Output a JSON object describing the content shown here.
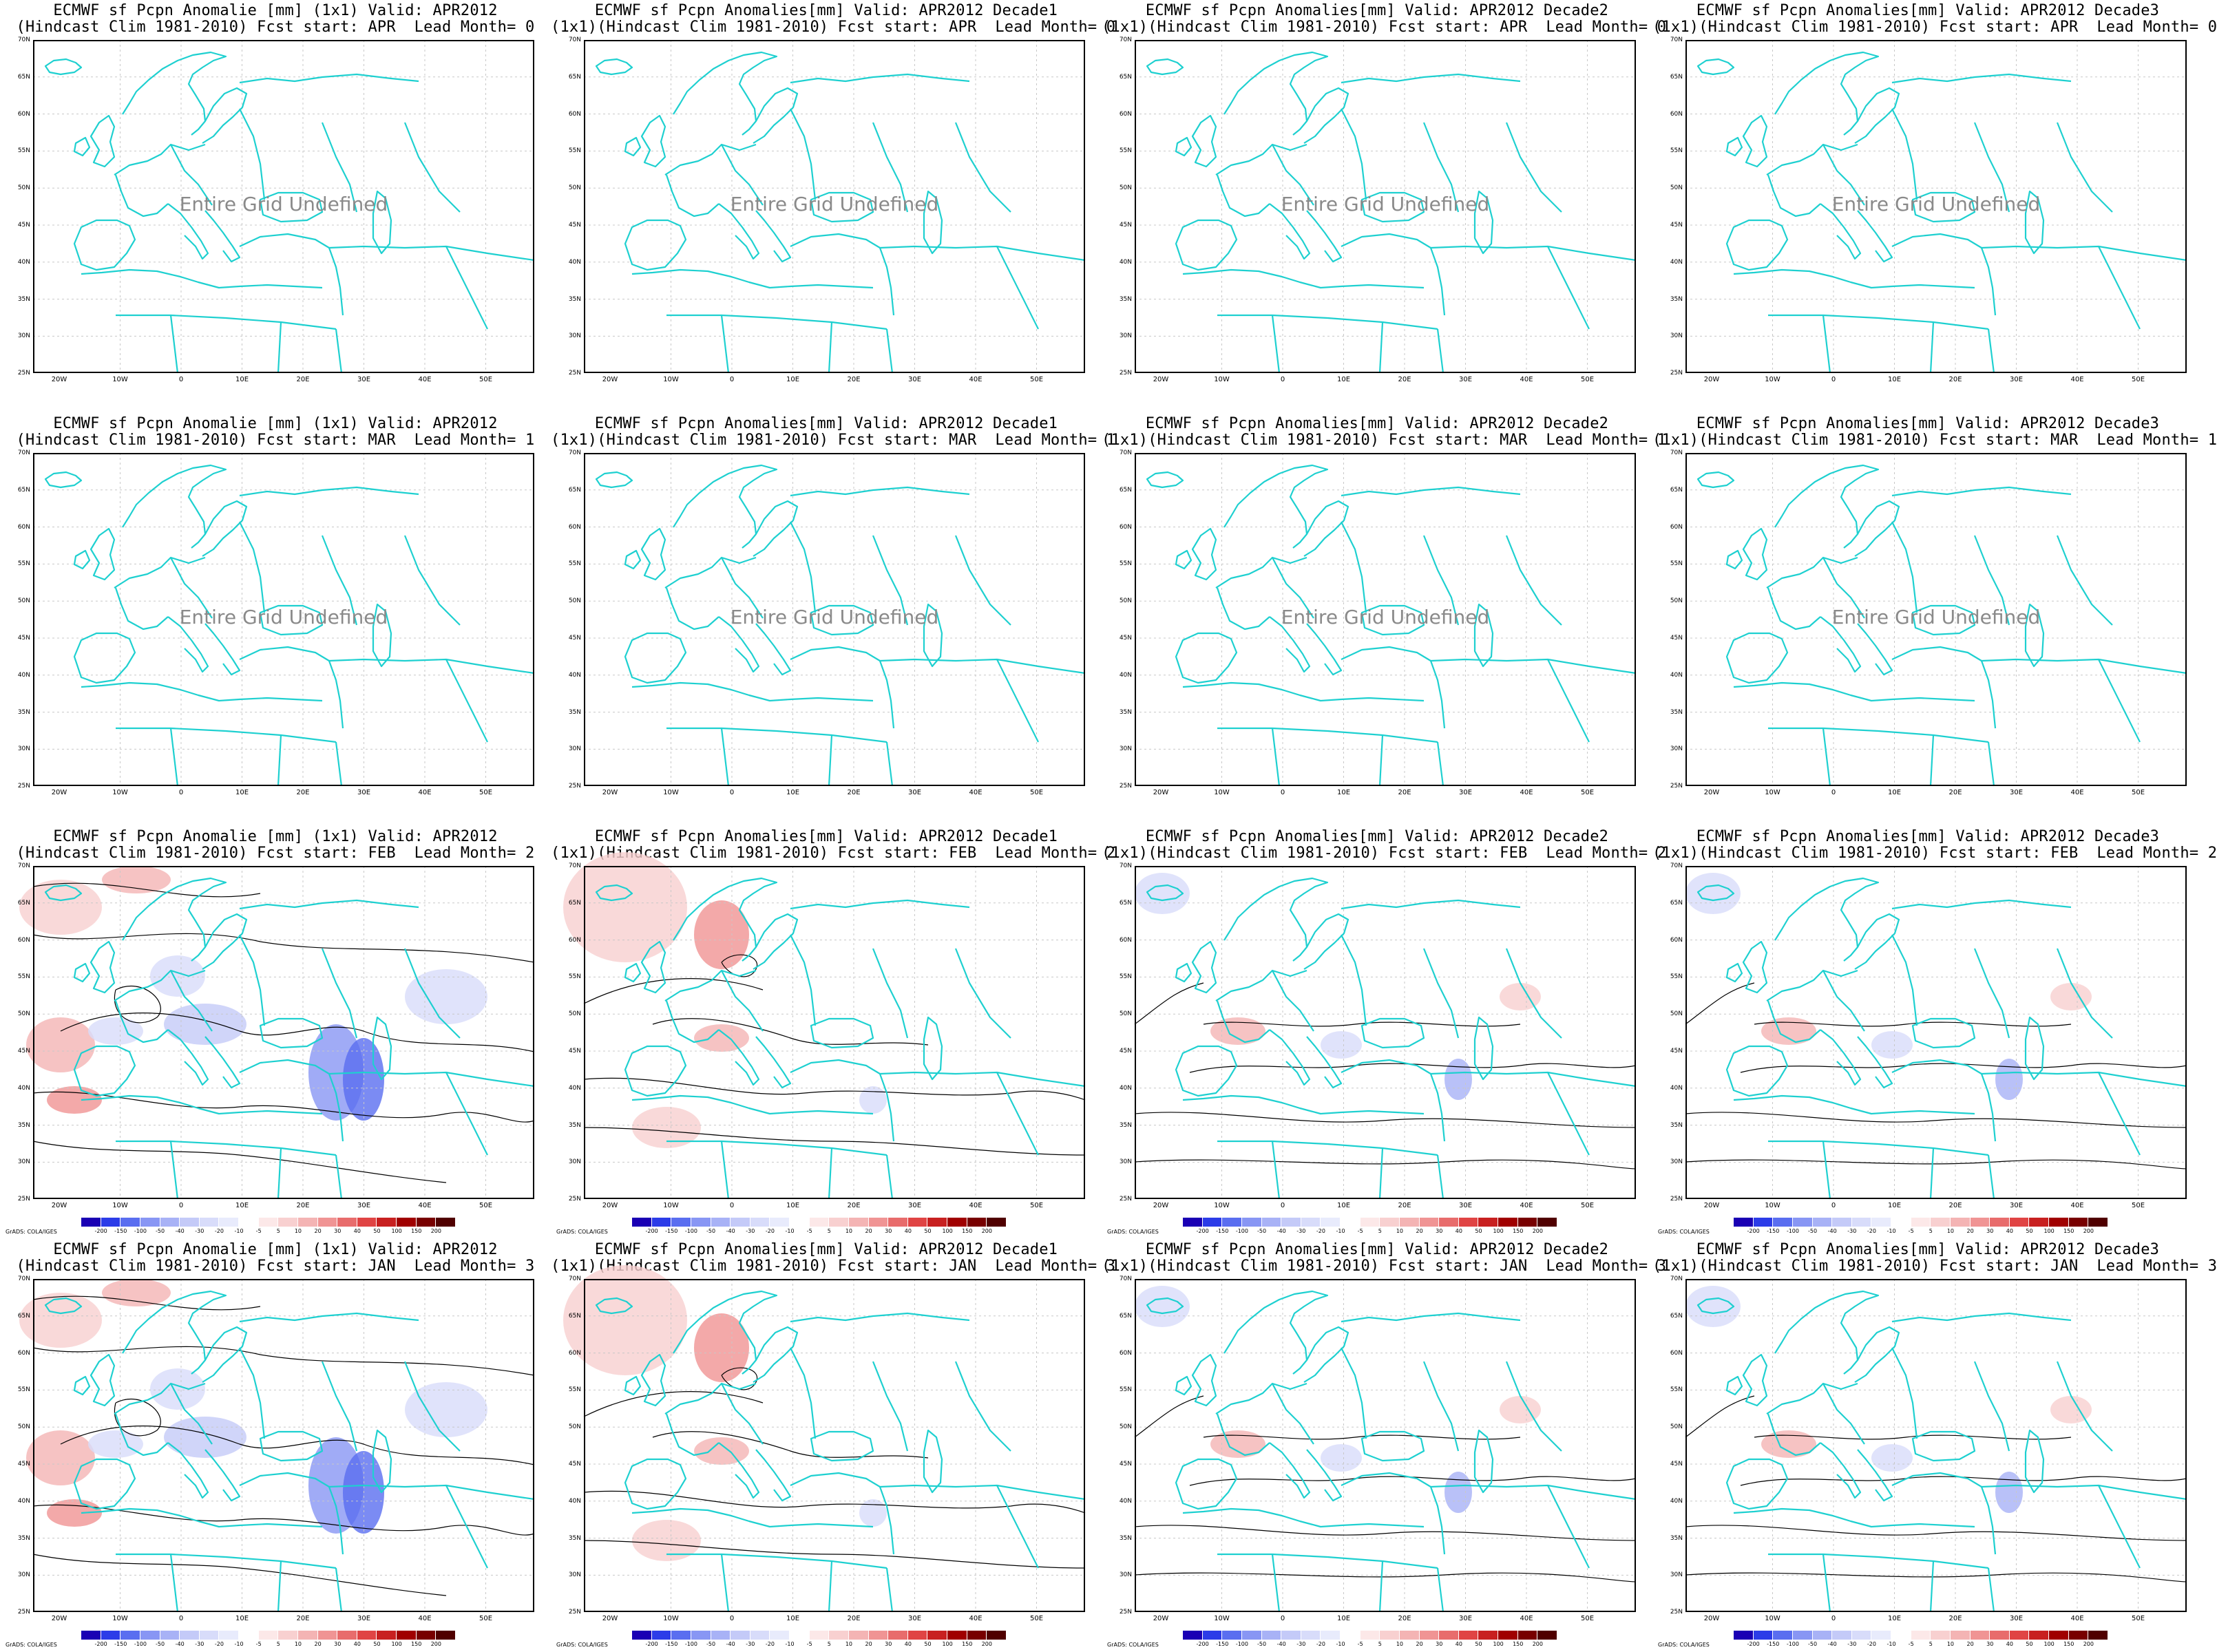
{
  "no_data_text": "Entire Grid Undefined",
  "credit": "GrADS: COLA/IGES",
  "lat_labels": [
    "70N",
    "65N",
    "60N",
    "55N",
    "50N",
    "45N",
    "40N",
    "35N",
    "30N",
    "25N"
  ],
  "lon_labels": [
    "20W",
    "10W",
    "0",
    "10E",
    "20E",
    "30E",
    "40E",
    "50E"
  ],
  "colorbar": {
    "labels": [
      "-200",
      "-150",
      "-100",
      "-50",
      "-40",
      "-30",
      "-20",
      "-10",
      "-5",
      "5",
      "10",
      "20",
      "30",
      "40",
      "50",
      "100",
      "150",
      "200"
    ],
    "colors": [
      "#1a00b4",
      "#2c3ce8",
      "#5a6ef0",
      "#8896f4",
      "#a8b2f6",
      "#c4caf8",
      "#d8dcfa",
      "#e8ebfc",
      "#ffffff",
      "#fce8e8",
      "#f8d0d0",
      "#f4b4b4",
      "#f09494",
      "#e86c6c",
      "#e04444",
      "#c82020",
      "#a00000",
      "#780000",
      "#500000"
    ]
  },
  "colors": {
    "coast": "#1ed0d0",
    "contour": "#000000",
    "grid": "#c8c8c8"
  },
  "panels": [
    {
      "t1": "ECMWF sf Pcpn Anomalie [mm] (1x1) Valid: APR2012",
      "t2": "(Hindcast Clim 1981-2010) Fcst start: APR  Lead Month= 0",
      "undefined": true,
      "pattern": 0
    },
    {
      "t1": "ECMWF sf Pcpn Anomalies[mm] Valid: APR2012 Decade1",
      "t2": "(1x1)(Hindcast Clim 1981-2010) Fcst start: APR  Lead Month= 0",
      "undefined": true,
      "pattern": 0
    },
    {
      "t1": "ECMWF sf Pcpn Anomalies[mm] Valid: APR2012 Decade2",
      "t2": "(1x1)(Hindcast Clim 1981-2010) Fcst start: APR  Lead Month= 0",
      "undefined": true,
      "pattern": 0
    },
    {
      "t1": "ECMWF sf Pcpn Anomalies[mm] Valid: APR2012 Decade3",
      "t2": "(1x1)(Hindcast Clim 1981-2010) Fcst start: APR  Lead Month= 0",
      "undefined": true,
      "pattern": 0
    },
    {
      "t1": "ECMWF sf Pcpn Anomalie [mm] (1x1) Valid: APR2012",
      "t2": "(Hindcast Clim 1981-2010) Fcst start: MAR  Lead Month= 1",
      "undefined": true,
      "pattern": 0
    },
    {
      "t1": "ECMWF sf Pcpn Anomalies[mm] Valid: APR2012 Decade1",
      "t2": "(1x1)(Hindcast Clim 1981-2010) Fcst start: MAR  Lead Month= 1",
      "undefined": true,
      "pattern": 0
    },
    {
      "t1": "ECMWF sf Pcpn Anomalies[mm] Valid: APR2012 Decade2",
      "t2": "(1x1)(Hindcast Clim 1981-2010) Fcst start: MAR  Lead Month= 1",
      "undefined": true,
      "pattern": 0
    },
    {
      "t1": "ECMWF sf Pcpn Anomalies[mm] Valid: APR2012 Decade3",
      "t2": "(1x1)(Hindcast Clim 1981-2010) Fcst start: MAR  Lead Month= 1",
      "undefined": true,
      "pattern": 0
    },
    {
      "t1": "ECMWF sf Pcpn Anomalie [mm] (1x1) Valid: APR2012",
      "t2": "(Hindcast Clim 1981-2010) Fcst start: FEB  Lead Month= 2",
      "undefined": false,
      "pattern": 1
    },
    {
      "t1": "ECMWF sf Pcpn Anomalies[mm] Valid: APR2012 Decade1",
      "t2": "(1x1)(Hindcast Clim 1981-2010) Fcst start: FEB  Lead Month= 2",
      "undefined": false,
      "pattern": 2
    },
    {
      "t1": "ECMWF sf Pcpn Anomalies[mm] Valid: APR2012 Decade2",
      "t2": "(1x1)(Hindcast Clim 1981-2010) Fcst start: FEB  Lead Month= 2",
      "undefined": false,
      "pattern": 3
    },
    {
      "t1": "ECMWF sf Pcpn Anomalies[mm] Valid: APR2012 Decade3",
      "t2": "(1x1)(Hindcast Clim 1981-2010) Fcst start: FEB  Lead Month= 2",
      "undefined": false,
      "pattern": 3
    },
    {
      "t1": "ECMWF sf Pcpn Anomalie [mm] (1x1) Valid: APR2012",
      "t2": "(Hindcast Clim 1981-2010) Fcst start: JAN  Lead Month= 3",
      "undefined": false,
      "pattern": 1
    },
    {
      "t1": "ECMWF sf Pcpn Anomalies[mm] Valid: APR2012 Decade1",
      "t2": "(1x1)(Hindcast Clim 1981-2010) Fcst start: JAN  Lead Month= 3",
      "undefined": false,
      "pattern": 2
    },
    {
      "t1": "ECMWF sf Pcpn Anomalies[mm] Valid: APR2012 Decade2",
      "t2": "(1x1)(Hindcast Clim 1981-2010) Fcst start: JAN  Lead Month= 3",
      "undefined": false,
      "pattern": 3
    },
    {
      "t1": "ECMWF sf Pcpn Anomalies[mm] Valid: APR2012 Decade3",
      "t2": "(1x1)(Hindcast Clim 1981-2010) Fcst start: JAN  Lead Month= 3",
      "undefined": false,
      "pattern": 3
    }
  ]
}
